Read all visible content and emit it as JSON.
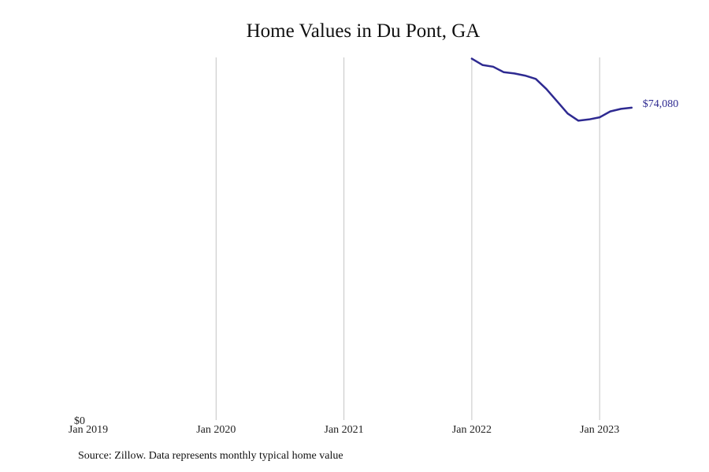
{
  "title": "Home Values in Du Pont, GA",
  "source": "Source: Zillow. Data represents monthly typical home value",
  "chart_data": {
    "type": "line",
    "title": "Home Values in Du Pont, GA",
    "xlabel": "",
    "ylabel": "",
    "x_ticks": [
      "Jan 2019",
      "Jan 2020",
      "Jan 2021",
      "Jan 2022",
      "Jan 2023"
    ],
    "y_ticks": [
      "$0"
    ],
    "ylim": [
      0,
      86000
    ],
    "grid": "vertical",
    "color": "#2e2a91",
    "end_label": "$74,080",
    "series": [
      {
        "x": [
          "2022-01",
          "2022-02",
          "2022-03",
          "2022-04",
          "2022-05",
          "2022-06",
          "2022-07",
          "2022-08",
          "2022-09",
          "2022-10",
          "2022-11",
          "2022-12",
          "2023-01",
          "2023-02",
          "2023-03",
          "2023-04"
        ],
        "values": [
          85700,
          84200,
          83800,
          82500,
          82200,
          81700,
          80900,
          78500,
          75600,
          72700,
          71000,
          71300,
          71800,
          73200,
          73800,
          74080
        ]
      }
    ]
  }
}
